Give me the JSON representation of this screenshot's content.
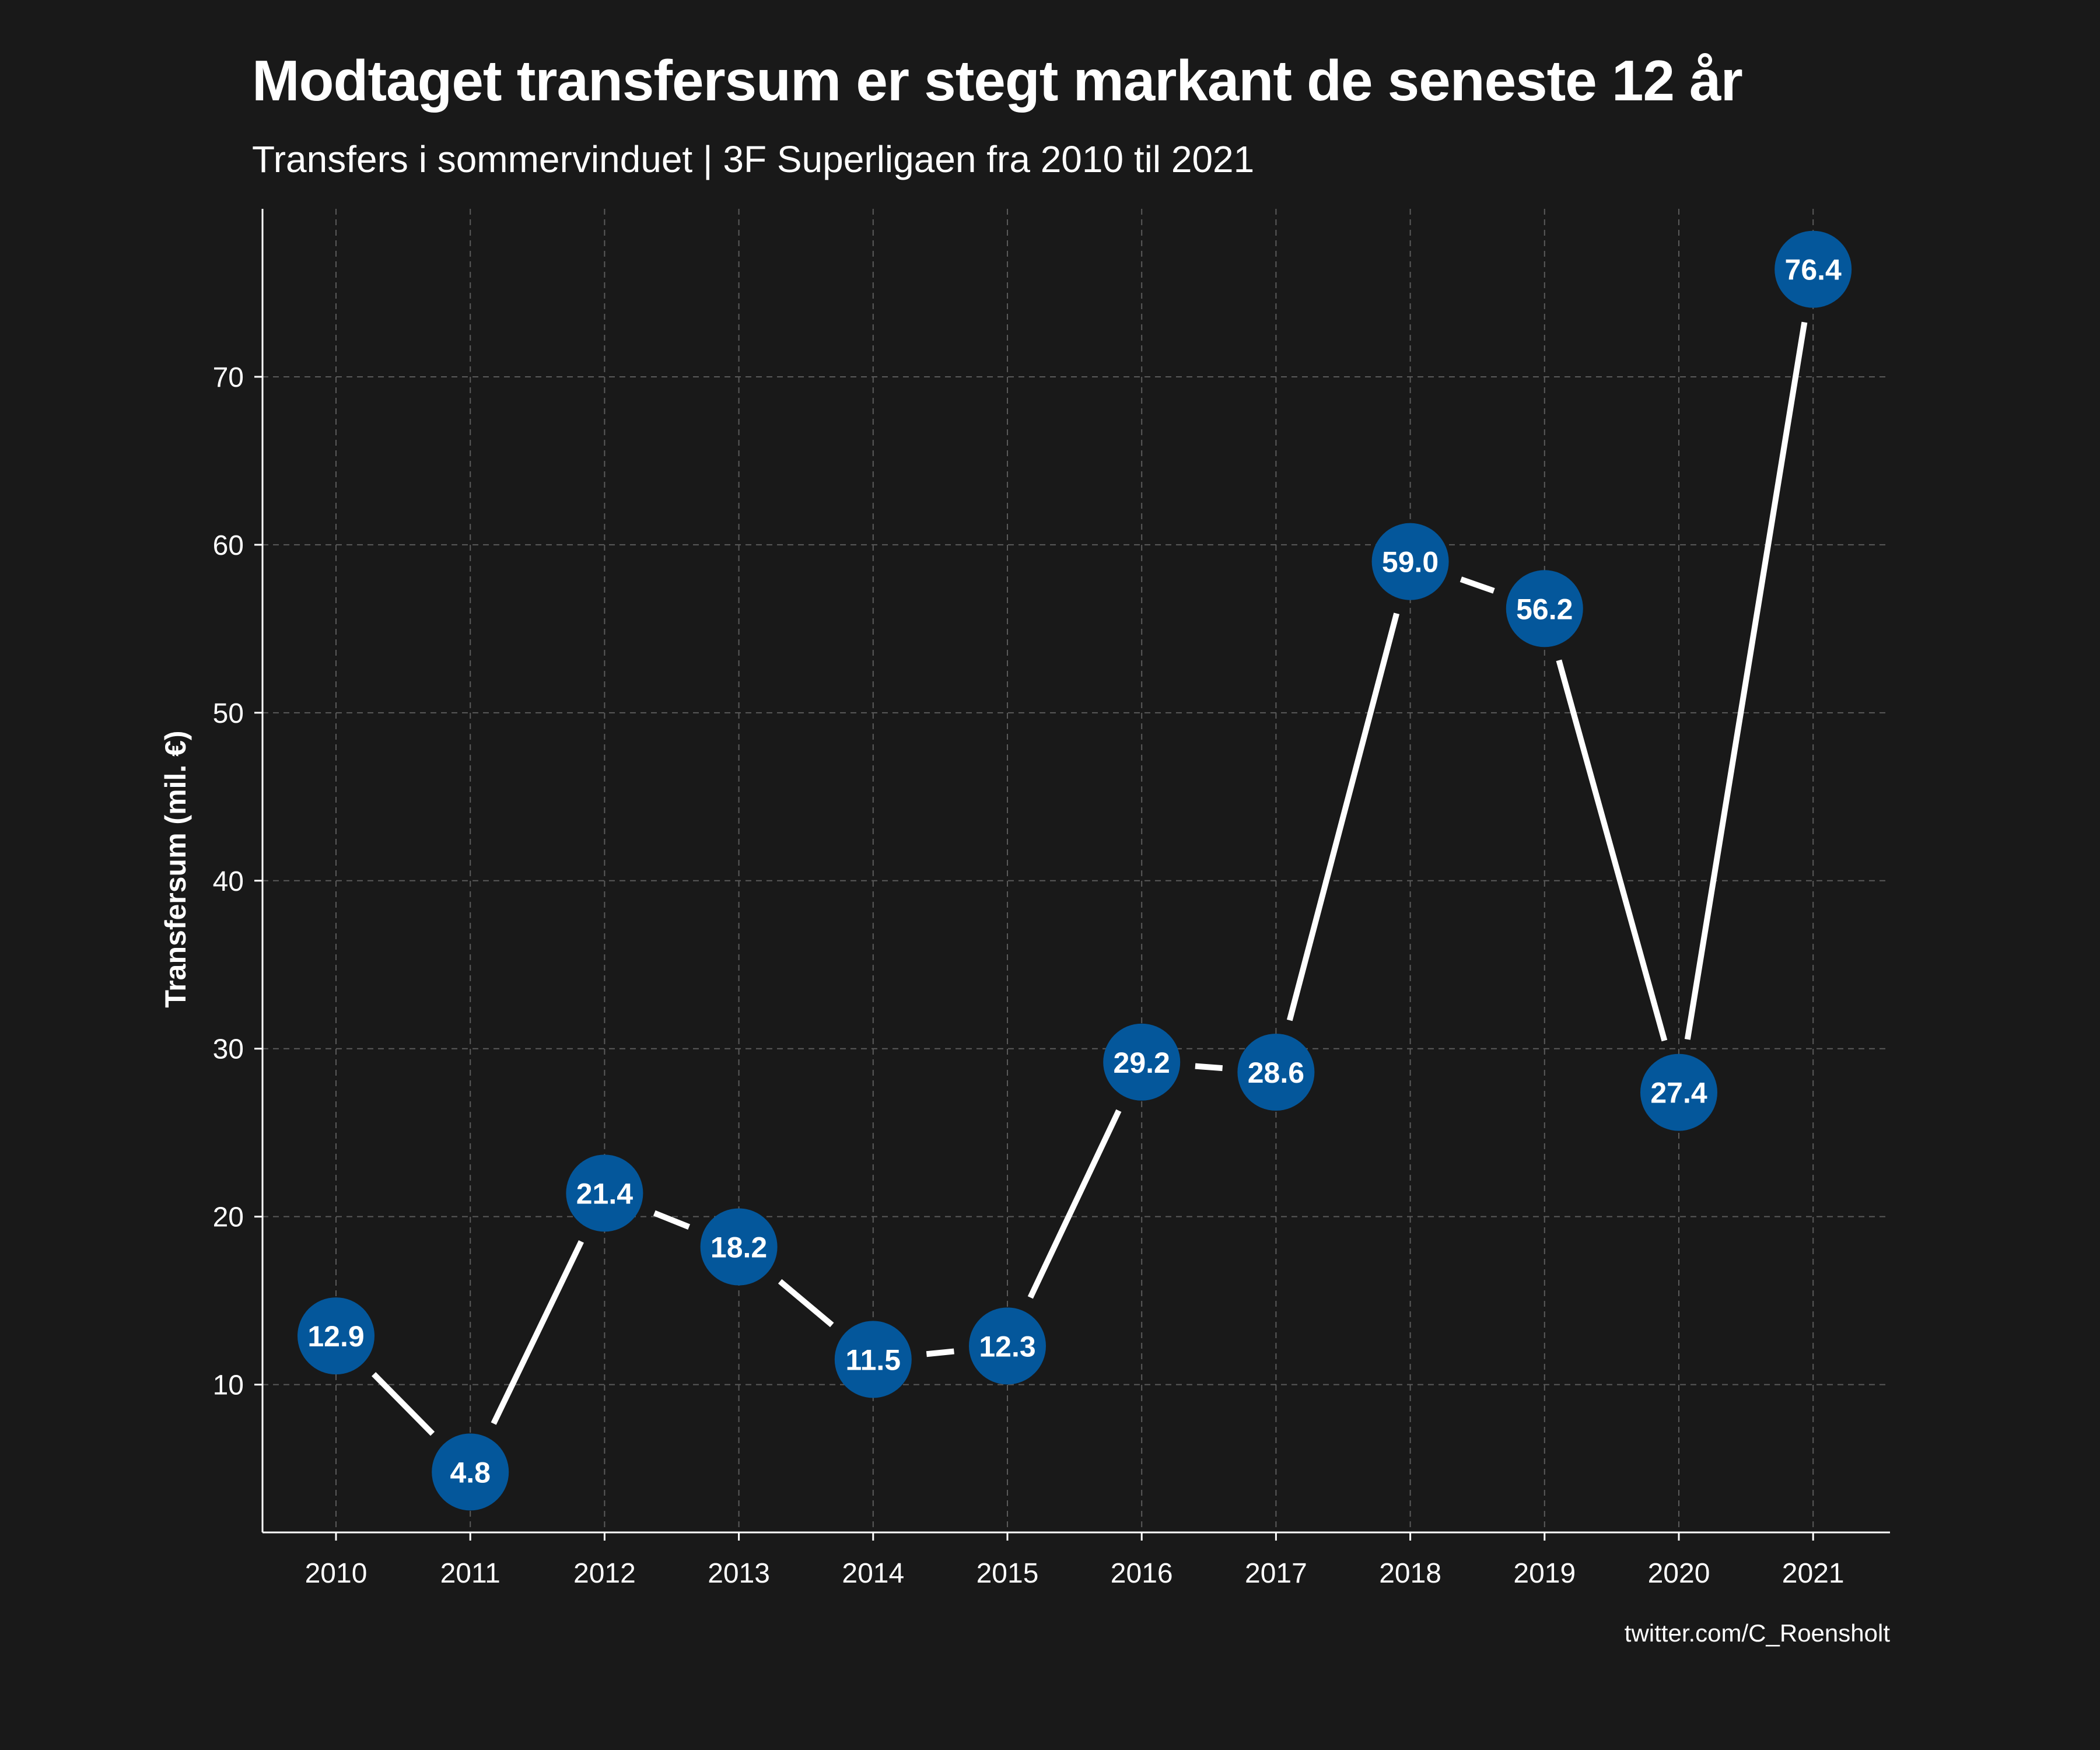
{
  "title": "Modtaget transfersum er stegt markant de seneste 12 år",
  "subtitle": "Transfers i sommervinduet | 3F Superligaen fra 2010 til 2021",
  "caption": "twitter.com/C_Roensholt",
  "colors": {
    "background": "#191919",
    "point": "#04579b",
    "line": "#ffffff",
    "grid": "#5a5a5a"
  },
  "chart_data": {
    "type": "line",
    "title": "Modtaget transfersum er stegt markant de seneste 12 år",
    "subtitle": "Transfers i sommervinduet | 3F Superligaen fra 2010 til 2021",
    "xlabel": "",
    "ylabel": "Transfersum (mil. €)",
    "x": [
      2010,
      2011,
      2012,
      2013,
      2014,
      2015,
      2016,
      2017,
      2018,
      2019,
      2020,
      2021
    ],
    "values": [
      12.9,
      4.8,
      21.4,
      18.2,
      11.5,
      12.3,
      29.2,
      28.6,
      59.0,
      56.2,
      27.4,
      76.4
    ],
    "data_labels": [
      "12.9",
      "4.8",
      "21.4",
      "18.2",
      "11.5",
      "12.3",
      "29.2",
      "28.6",
      "59.0",
      "56.2",
      "27.4",
      "76.4"
    ],
    "yticks": [
      10,
      20,
      30,
      40,
      50,
      60,
      70
    ],
    "xticks": [
      "2010",
      "2011",
      "2012",
      "2013",
      "2014",
      "2015",
      "2016",
      "2017",
      "2018",
      "2019",
      "2020",
      "2021"
    ],
    "ylim": [
      1.2,
      80
    ],
    "grid": true,
    "legend": "none"
  }
}
